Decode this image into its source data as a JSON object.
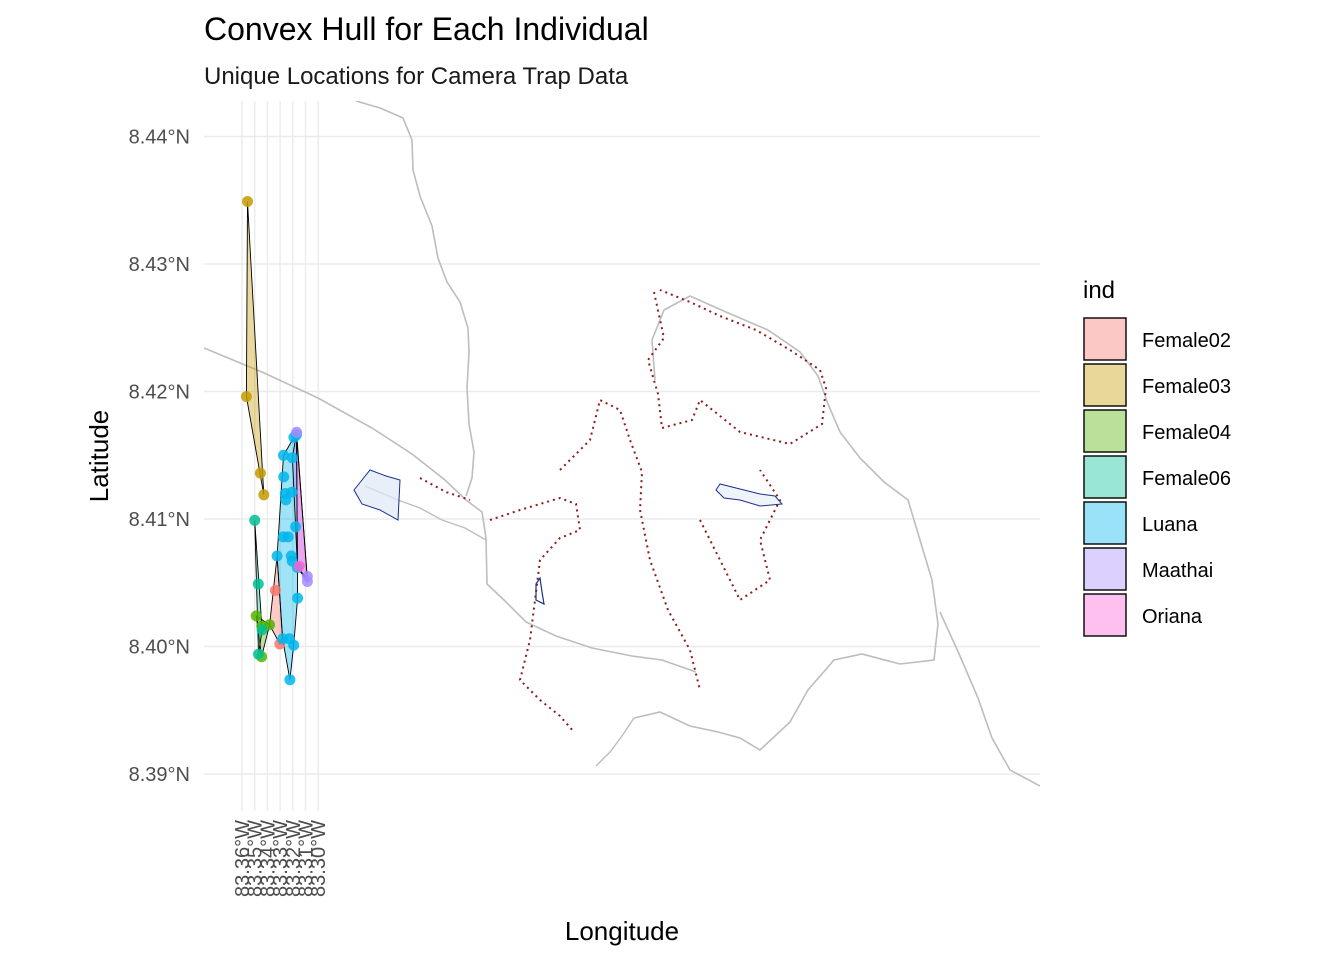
{
  "chart_data": {
    "type": "map",
    "title": "Convex Hull for Each Individual",
    "subtitle": "Unique Locations for Camera Trap Data",
    "xlabel": "Longitude",
    "ylabel": "Latitude",
    "xlim": [
      -83.3625,
      -83.2975
    ],
    "ylim": [
      8.3875,
      8.4425
    ],
    "x_ticks": [
      {
        "value": -83.36,
        "label": "83.36°W"
      },
      {
        "value": -83.35,
        "label": "83.35°W"
      },
      {
        "value": -83.34,
        "label": "83.34°W"
      },
      {
        "value": -83.33,
        "label": "83.33°W"
      },
      {
        "value": -83.32,
        "label": "83.32°W"
      },
      {
        "value": -83.31,
        "label": "83.31°W"
      },
      {
        "value": -83.3,
        "label": "83.30°W"
      }
    ],
    "y_ticks": [
      {
        "value": 8.39,
        "label": "8.39°N"
      },
      {
        "value": 8.4,
        "label": "8.40°N"
      },
      {
        "value": 8.41,
        "label": "8.41°N"
      },
      {
        "value": 8.42,
        "label": "8.42°N"
      },
      {
        "value": 8.43,
        "label": "8.43°N"
      },
      {
        "value": 8.44,
        "label": "8.44°N"
      }
    ],
    "legend": {
      "title": "ind",
      "position": "right",
      "entries": [
        {
          "name": "Female02",
          "color": "#F8766D"
        },
        {
          "name": "Female03",
          "color": "#C49A00"
        },
        {
          "name": "Female04",
          "color": "#53B400"
        },
        {
          "name": "Female06",
          "color": "#00C094"
        },
        {
          "name": "Luana",
          "color": "#00B6EB"
        },
        {
          "name": "Maathai",
          "color": "#A58AFF"
        },
        {
          "name": "Oriana",
          "color": "#FB61D7"
        }
      ]
    },
    "series": [
      {
        "name": "Female02",
        "color": "#F8766D",
        "points": [
          [
            -83.3337,
            8.4044
          ],
          [
            -83.3302,
            8.4002
          ]
        ],
        "hull": [
          [
            -83.3383,
            8.4017
          ],
          [
            -83.3324,
            8.4071
          ],
          [
            -83.328,
            8.4006
          ],
          [
            -83.3302,
            8.4002
          ]
        ]
      },
      {
        "name": "Female03",
        "color": "#C49A00",
        "points": [
          [
            -83.3557,
            8.4349
          ],
          [
            -83.3565,
            8.4196
          ],
          [
            -83.3455,
            8.4136
          ],
          [
            -83.3428,
            8.4119
          ]
        ],
        "hull": [
          [
            -83.3557,
            8.4349
          ],
          [
            -83.3428,
            8.4119
          ],
          [
            -83.3565,
            8.4196
          ]
        ]
      },
      {
        "name": "Female04",
        "color": "#53B400",
        "points": [
          [
            -83.3488,
            8.4024
          ],
          [
            -83.3445,
            8.4016
          ],
          [
            -83.3446,
            8.3992
          ],
          [
            -83.3383,
            8.4017
          ]
        ],
        "hull": [
          [
            -83.3488,
            8.4024
          ],
          [
            -83.3383,
            8.4017
          ],
          [
            -83.3446,
            8.3992
          ]
        ]
      },
      {
        "name": "Female06",
        "color": "#00C094",
        "points": [
          [
            -83.35,
            8.4099
          ],
          [
            -83.3472,
            8.4049
          ],
          [
            -83.347,
            8.3994
          ],
          [
            -83.3442,
            8.4013
          ]
        ],
        "hull": [
          [
            -83.35,
            8.4099
          ],
          [
            -83.3442,
            8.4013
          ],
          [
            -83.347,
            8.3994
          ]
        ]
      },
      {
        "name": "Luana",
        "color": "#00B6EB",
        "points": [
          [
            -83.3273,
            8.415
          ],
          [
            -83.3272,
            8.4133
          ],
          [
            -83.3259,
            8.412
          ],
          [
            -83.3254,
            8.4115
          ],
          [
            -83.3275,
            8.4086
          ],
          [
            -83.3236,
            8.4086
          ],
          [
            -83.3324,
            8.4071
          ],
          [
            -83.328,
            8.4006
          ],
          [
            -83.3227,
            8.4006
          ],
          [
            -83.3223,
            8.3974
          ],
          [
            -83.3191,
            8.4164
          ],
          [
            -83.3203,
            8.4148
          ],
          [
            -83.3206,
            8.4121
          ],
          [
            -83.3212,
            8.4071
          ],
          [
            -83.3205,
            8.4067
          ],
          [
            -83.3193,
            8.4001
          ],
          [
            -83.3178,
            8.4094
          ],
          [
            -83.3163,
            8.4062
          ],
          [
            -83.3162,
            8.4038
          ],
          [
            -83.3171,
            8.4166
          ]
        ],
        "hull": [
          [
            -83.3324,
            8.4071
          ],
          [
            -83.3273,
            8.415
          ],
          [
            -83.3191,
            8.4164
          ],
          [
            -83.3171,
            8.4166
          ],
          [
            -83.3162,
            8.4038
          ],
          [
            -83.3193,
            8.4001
          ],
          [
            -83.3223,
            8.3974
          ],
          [
            -83.328,
            8.4006
          ]
        ]
      },
      {
        "name": "Maathai",
        "color": "#A58AFF",
        "points": [
          [
            -83.317,
            8.4168
          ],
          [
            -83.3086,
            8.4055
          ],
          [
            -83.3085,
            8.4051
          ]
        ],
        "hull": [
          [
            -83.3203,
            8.4148
          ],
          [
            -83.317,
            8.4168
          ],
          [
            -83.3085,
            8.4051
          ],
          [
            -83.3163,
            8.4062
          ]
        ]
      },
      {
        "name": "Oriana",
        "color": "#FB61D7",
        "points": [
          [
            -83.315,
            8.4063
          ]
        ],
        "hull": [
          [
            -83.3171,
            8.4166
          ],
          [
            -83.3085,
            8.4053
          ],
          [
            -83.3163,
            8.4062
          ]
        ]
      }
    ]
  }
}
